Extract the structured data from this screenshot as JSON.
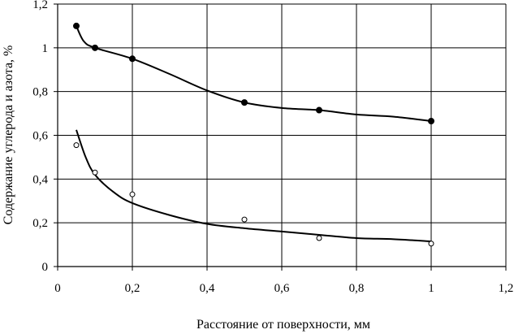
{
  "chart_data": {
    "type": "scatter",
    "title": "",
    "xlabel": "Расстояние от  поверхности, мм",
    "ylabel": "Содержание углерода и азота, %",
    "xlim": [
      0,
      1.2
    ],
    "ylim": [
      0,
      1.2
    ],
    "x_ticks": [
      "0",
      "0,2",
      "0,4",
      "0,6",
      "0,8",
      "1",
      "1,2"
    ],
    "y_ticks": [
      "0",
      "0,2",
      "0,4",
      "0,6",
      "0,8",
      "1",
      "1,2"
    ],
    "grid": true,
    "legend": "none",
    "series": [
      {
        "marker": "filled-circle",
        "color": "#000000",
        "points": [
          {
            "x": 0.05,
            "y": 1.1
          },
          {
            "x": 0.1,
            "y": 1.0
          },
          {
            "x": 0.2,
            "y": 0.95
          },
          {
            "x": 0.5,
            "y": 0.75
          },
          {
            "x": 0.7,
            "y": 0.715
          },
          {
            "x": 1.0,
            "y": 0.665
          }
        ],
        "trend": [
          {
            "x": 0.05,
            "y": 1.1
          },
          {
            "x": 0.07,
            "y": 1.03
          },
          {
            "x": 0.1,
            "y": 1.0
          },
          {
            "x": 0.2,
            "y": 0.95
          },
          {
            "x": 0.3,
            "y": 0.88
          },
          {
            "x": 0.4,
            "y": 0.805
          },
          {
            "x": 0.5,
            "y": 0.75
          },
          {
            "x": 0.6,
            "y": 0.725
          },
          {
            "x": 0.7,
            "y": 0.715
          },
          {
            "x": 0.8,
            "y": 0.695
          },
          {
            "x": 0.9,
            "y": 0.685
          },
          {
            "x": 1.0,
            "y": 0.665
          }
        ]
      },
      {
        "marker": "open-circle",
        "color": "#000000",
        "points": [
          {
            "x": 0.05,
            "y": 0.555
          },
          {
            "x": 0.1,
            "y": 0.43
          },
          {
            "x": 0.2,
            "y": 0.33
          },
          {
            "x": 0.5,
            "y": 0.215
          },
          {
            "x": 0.7,
            "y": 0.13
          },
          {
            "x": 1.0,
            "y": 0.105
          }
        ],
        "trend": [
          {
            "x": 0.05,
            "y": 0.625
          },
          {
            "x": 0.075,
            "y": 0.5
          },
          {
            "x": 0.1,
            "y": 0.42
          },
          {
            "x": 0.15,
            "y": 0.34
          },
          {
            "x": 0.2,
            "y": 0.29
          },
          {
            "x": 0.3,
            "y": 0.235
          },
          {
            "x": 0.4,
            "y": 0.195
          },
          {
            "x": 0.5,
            "y": 0.175
          },
          {
            "x": 0.6,
            "y": 0.16
          },
          {
            "x": 0.7,
            "y": 0.145
          },
          {
            "x": 0.8,
            "y": 0.13
          },
          {
            "x": 0.9,
            "y": 0.125
          },
          {
            "x": 1.0,
            "y": 0.115
          }
        ]
      }
    ]
  }
}
